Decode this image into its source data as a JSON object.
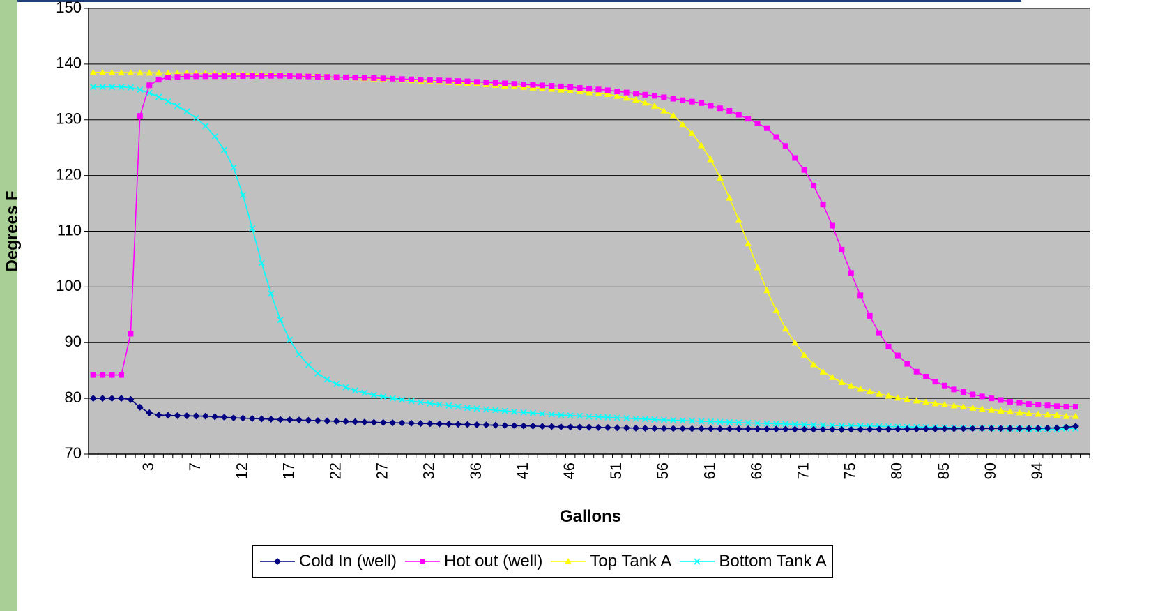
{
  "chart_data": {
    "type": "line",
    "title": "",
    "xlabel": "Gallons",
    "ylabel": "Degrees F",
    "ylim": [
      70,
      150
    ],
    "yticks": [
      70,
      80,
      90,
      100,
      110,
      120,
      130,
      140,
      150
    ],
    "grid": true,
    "legend_position": "bottom",
    "x_tick_labels": [
      "3",
      "7",
      "12",
      "17",
      "22",
      "27",
      "32",
      "36",
      "41",
      "46",
      "51",
      "56",
      "61",
      "66",
      "71",
      "75",
      "80",
      "85",
      "90",
      "94"
    ],
    "x_tick_label_indices": [
      6,
      11,
      16,
      21,
      26,
      31,
      36,
      41,
      46,
      51,
      56,
      61,
      66,
      71,
      76,
      81,
      86,
      91,
      96,
      101
    ],
    "point_count": 106,
    "x_range_end": 107,
    "series": [
      {
        "name": "Cold In (well)",
        "color": "#000080",
        "marker": "diamond",
        "anchors": [
          [
            0,
            80
          ],
          [
            3,
            80
          ],
          [
            4,
            79.8
          ],
          [
            5,
            78.4
          ],
          [
            6,
            77.4
          ],
          [
            7,
            77
          ],
          [
            9,
            76.9
          ],
          [
            12,
            76.8
          ],
          [
            15,
            76.5
          ],
          [
            20,
            76.2
          ],
          [
            30,
            75.7
          ],
          [
            40,
            75.3
          ],
          [
            50,
            74.9
          ],
          [
            60,
            74.6
          ],
          [
            70,
            74.5
          ],
          [
            80,
            74.4
          ],
          [
            90,
            74.5
          ],
          [
            95,
            74.6
          ],
          [
            100,
            74.6
          ],
          [
            103,
            74.7
          ],
          [
            104,
            74.8
          ],
          [
            105,
            75
          ]
        ]
      },
      {
        "name": "Hot out (well)",
        "color": "#ff00ff",
        "marker": "square",
        "anchors": [
          [
            0,
            84.2
          ],
          [
            3,
            84.2
          ],
          [
            4,
            91.6
          ],
          [
            5,
            130.7
          ],
          [
            6,
            136.2
          ],
          [
            7,
            137.2
          ],
          [
            8,
            137.6
          ],
          [
            10,
            137.8
          ],
          [
            20,
            137.9
          ],
          [
            30,
            137.5
          ],
          [
            40,
            136.9
          ],
          [
            50,
            136
          ],
          [
            55,
            135.3
          ],
          [
            60,
            134.3
          ],
          [
            65,
            133
          ],
          [
            68,
            131.6
          ],
          [
            70,
            130.2
          ],
          [
            72,
            128.5
          ],
          [
            74,
            125.3
          ],
          [
            76,
            121
          ],
          [
            77,
            118.2
          ],
          [
            78,
            114.8
          ],
          [
            79,
            111
          ],
          [
            80,
            106.7
          ],
          [
            81,
            102.5
          ],
          [
            82,
            98.5
          ],
          [
            83,
            94.8
          ],
          [
            84,
            91.7
          ],
          [
            85,
            89.3
          ],
          [
            86,
            87.7
          ],
          [
            87,
            86.2
          ],
          [
            88,
            84.8
          ],
          [
            90,
            83
          ],
          [
            92,
            81.6
          ],
          [
            94,
            80.7
          ],
          [
            96,
            80
          ],
          [
            98,
            79.4
          ],
          [
            100,
            79
          ],
          [
            103,
            78.6
          ],
          [
            104,
            78.5
          ]
        ]
      },
      {
        "name": "Top Tank A",
        "color": "#ffff00",
        "marker": "triangle",
        "anchors": [
          [
            0,
            138.5
          ],
          [
            10,
            138.4
          ],
          [
            20,
            138.1
          ],
          [
            30,
            137.4
          ],
          [
            40,
            136.6
          ],
          [
            50,
            135.4
          ],
          [
            55,
            134.6
          ],
          [
            58,
            133.6
          ],
          [
            60,
            132.5
          ],
          [
            62,
            130.8
          ],
          [
            63,
            129.2
          ],
          [
            64,
            127.6
          ],
          [
            65,
            125.4
          ],
          [
            66,
            122.9
          ],
          [
            67,
            119.6
          ],
          [
            68,
            116
          ],
          [
            69,
            112
          ],
          [
            70,
            107.8
          ],
          [
            71,
            103.5
          ],
          [
            72,
            99.4
          ],
          [
            73,
            95.8
          ],
          [
            74,
            92.5
          ],
          [
            75,
            90
          ],
          [
            76,
            87.8
          ],
          [
            77,
            86.1
          ],
          [
            78,
            84.8
          ],
          [
            79,
            83.8
          ],
          [
            80,
            82.9
          ],
          [
            82,
            81.7
          ],
          [
            84,
            80.8
          ],
          [
            86,
            80.1
          ],
          [
            88,
            79.6
          ],
          [
            90,
            79.1
          ],
          [
            92,
            78.7
          ],
          [
            95,
            78.1
          ],
          [
            100,
            77.3
          ],
          [
            103,
            77
          ],
          [
            104,
            76.8
          ]
        ]
      },
      {
        "name": "Bottom Tank A",
        "color": "#00ffff",
        "marker": "x",
        "anchors": [
          [
            0,
            135.9
          ],
          [
            3,
            135.9
          ],
          [
            4,
            135.8
          ],
          [
            5,
            135.4
          ],
          [
            6,
            134.8
          ],
          [
            7,
            134.1
          ],
          [
            8,
            133.3
          ],
          [
            9,
            132.5
          ],
          [
            10,
            131.5
          ],
          [
            11,
            130.3
          ],
          [
            12,
            128.9
          ],
          [
            13,
            127
          ],
          [
            14,
            124.6
          ],
          [
            15,
            121.4
          ],
          [
            16,
            116.5
          ],
          [
            17,
            110.5
          ],
          [
            18,
            104.3
          ],
          [
            19,
            98.8
          ],
          [
            20,
            94.1
          ],
          [
            21,
            90.5
          ],
          [
            22,
            87.9
          ],
          [
            23,
            86
          ],
          [
            24,
            84.5
          ],
          [
            25,
            83.4
          ],
          [
            26,
            82.6
          ],
          [
            28,
            81.4
          ],
          [
            30,
            80.6
          ],
          [
            32,
            80
          ],
          [
            35,
            79.3
          ],
          [
            40,
            78.3
          ],
          [
            45,
            77.6
          ],
          [
            50,
            77
          ],
          [
            60,
            76.2
          ],
          [
            70,
            75.6
          ],
          [
            80,
            75.1
          ],
          [
            90,
            74.8
          ],
          [
            100,
            74.5
          ],
          [
            103,
            74.4
          ],
          [
            104,
            74.6
          ]
        ]
      }
    ]
  }
}
